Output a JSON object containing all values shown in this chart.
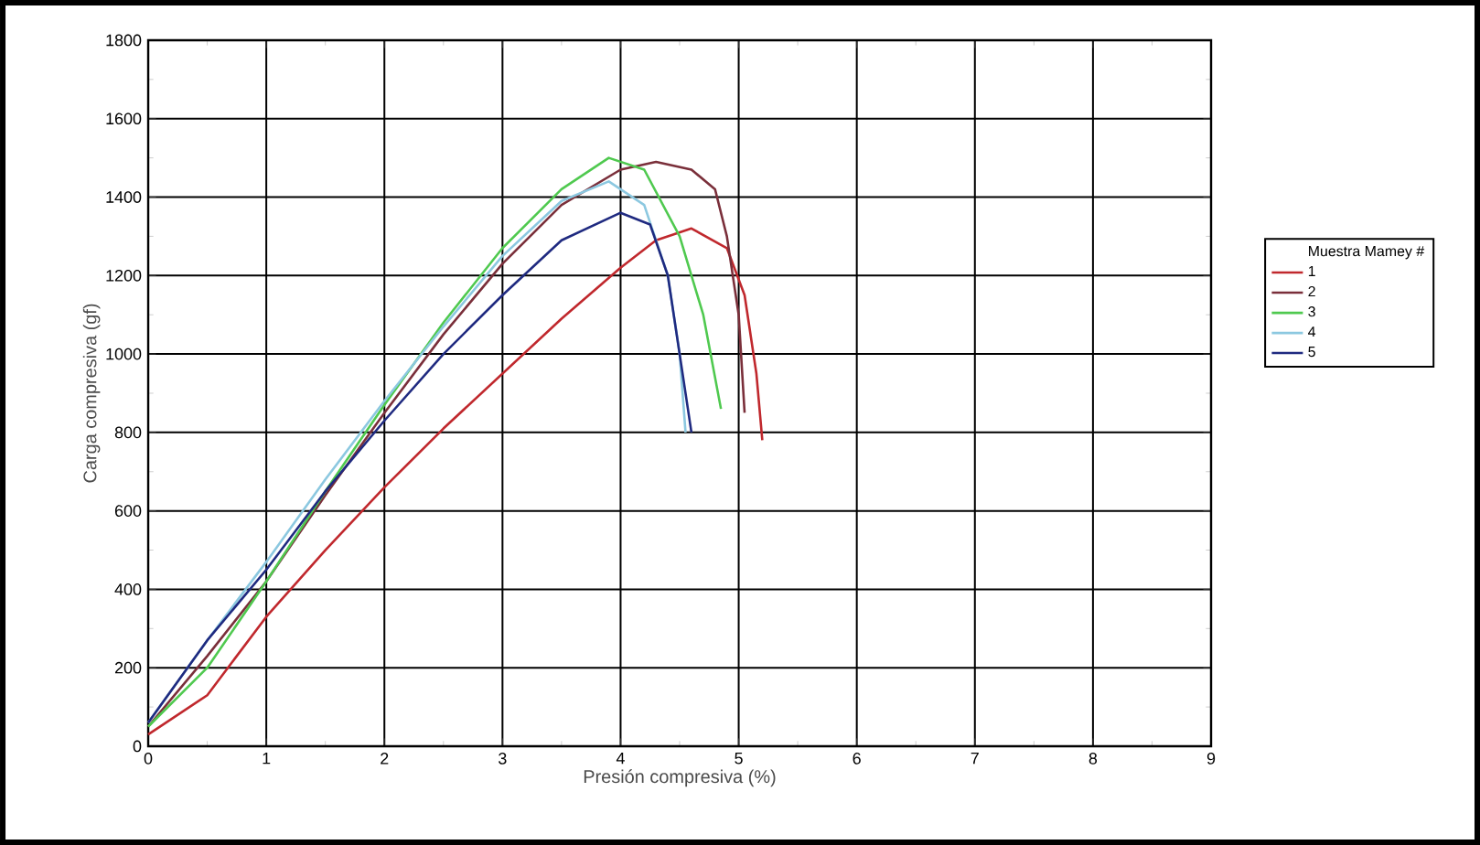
{
  "chart_data": {
    "type": "line",
    "xlabel": "Presión compresiva (%)",
    "ylabel": "Carga compresiva (gf)",
    "legend_title": "Muestra Mamey #",
    "xlim": [
      0,
      9
    ],
    "ylim": [
      0,
      1800
    ],
    "xticks": [
      0,
      1,
      2,
      3,
      4,
      5,
      6,
      7,
      8,
      9
    ],
    "yticks": [
      0,
      200,
      400,
      600,
      800,
      1000,
      1200,
      1400,
      1600,
      1800
    ],
    "grid": true,
    "legend": "right",
    "marker": "none",
    "line_style": "solid",
    "series": [
      {
        "name": "1",
        "color": "#c0282d",
        "x": [
          0,
          0.5,
          1,
          1.5,
          2,
          2.5,
          3,
          3.5,
          4,
          4.3,
          4.6,
          4.9,
          5.05,
          5.15,
          5.2
        ],
        "values": [
          30,
          130,
          330,
          500,
          660,
          810,
          950,
          1090,
          1220,
          1290,
          1320,
          1270,
          1150,
          950,
          780
        ]
      },
      {
        "name": "2",
        "color": "#7a2f3a",
        "x": [
          0,
          0.5,
          1,
          1.5,
          2,
          2.5,
          3,
          3.5,
          4,
          4.3,
          4.6,
          4.8,
          4.9,
          5.0,
          5.05
        ],
        "values": [
          50,
          230,
          420,
          640,
          850,
          1050,
          1230,
          1380,
          1470,
          1490,
          1470,
          1420,
          1300,
          1100,
          850
        ]
      },
      {
        "name": "3",
        "color": "#4fc94f",
        "x": [
          0,
          0.5,
          1,
          1.5,
          2,
          2.5,
          3,
          3.5,
          3.9,
          4.2,
          4.5,
          4.7,
          4.85
        ],
        "values": [
          50,
          200,
          420,
          650,
          870,
          1080,
          1270,
          1420,
          1500,
          1470,
          1300,
          1100,
          860
        ]
      },
      {
        "name": "4",
        "color": "#8cc8e0",
        "x": [
          0,
          0.5,
          1,
          1.5,
          2,
          2.5,
          3,
          3.5,
          3.9,
          4.2,
          4.4,
          4.5,
          4.55
        ],
        "values": [
          60,
          270,
          470,
          680,
          880,
          1070,
          1250,
          1390,
          1440,
          1380,
          1200,
          1000,
          800
        ]
      },
      {
        "name": "5",
        "color": "#1f2a80",
        "x": [
          0,
          0.5,
          1,
          1.5,
          2,
          2.5,
          3,
          3.5,
          4,
          4.25,
          4.4,
          4.5,
          4.6
        ],
        "values": [
          60,
          270,
          450,
          650,
          830,
          1000,
          1150,
          1290,
          1360,
          1330,
          1200,
          1000,
          800
        ]
      }
    ]
  }
}
